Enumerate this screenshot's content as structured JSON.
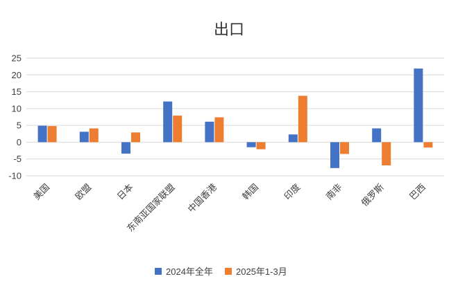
{
  "chart_data": {
    "type": "bar",
    "title": "出口",
    "categories": [
      "美国",
      "欧盟",
      "日本",
      "东南亚国家联盟",
      "中国香港",
      "韩国",
      "印度",
      "南非",
      "俄罗斯",
      "巴西"
    ],
    "series": [
      {
        "name": "2024年全年",
        "color": "#4472C4",
        "values": [
          4.9,
          3.1,
          -3.4,
          12.1,
          6.1,
          -1.5,
          2.3,
          -7.7,
          4.1,
          21.9
        ]
      },
      {
        "name": "2025年1-3月",
        "color": "#ED7D31",
        "values": [
          4.8,
          4.1,
          2.9,
          7.9,
          7.4,
          -2.1,
          13.8,
          -3.5,
          -6.9,
          -1.6
        ]
      }
    ],
    "ylim": [
      -10,
      25
    ],
    "yticks": [
      "-10",
      "-5",
      "0",
      "5",
      "10",
      "15",
      "20",
      "25"
    ],
    "grid": true,
    "legend_position": "bottom",
    "xlabel": "",
    "ylabel": ""
  }
}
